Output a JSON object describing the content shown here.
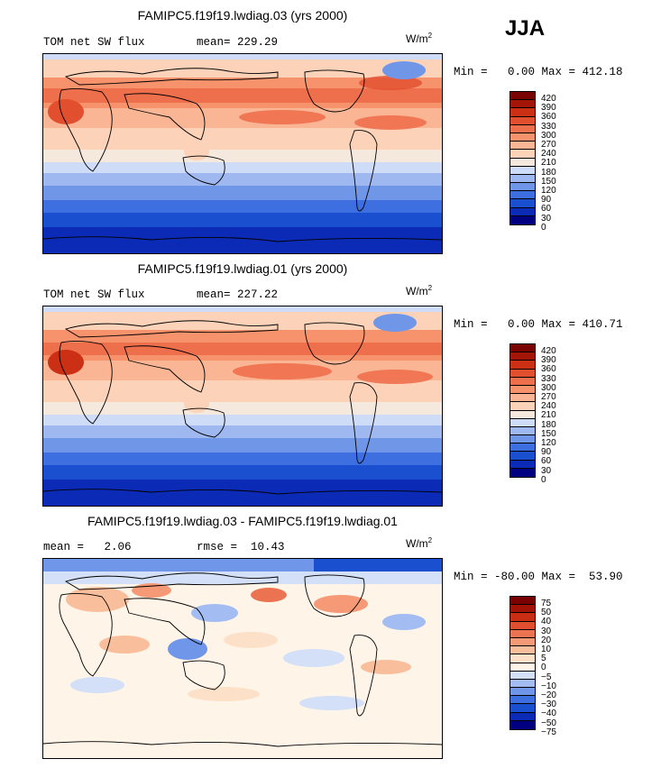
{
  "season": "JJA",
  "colors": {
    "abs": [
      "#000080",
      "#0b2ab5",
      "#1a4fd0",
      "#3d6fe0",
      "#7096e8",
      "#a0b8f0",
      "#cfdcf7",
      "#f5e9de",
      "#fcd2b9",
      "#f9b594",
      "#f6936d",
      "#ee6f4c",
      "#e24f2e",
      "#cc3014",
      "#a31607",
      "#7a0404"
    ],
    "diff": [
      "#000080",
      "#0b2ab5",
      "#1a4fd0",
      "#3d6fe0",
      "#6f96e9",
      "#a3bdf2",
      "#d3e0f8",
      "#fff4e8",
      "#fce1c8",
      "#f9bf9c",
      "#f59976",
      "#ec7352",
      "#df4f2f",
      "#c92e14",
      "#a21305",
      "#7a0000"
    ]
  },
  "panels": [
    {
      "title": "FAMIPC5.f19f19.lwdiag.03 (yrs 2000)",
      "left_label": "TOM net SW flux",
      "stat_label": "mean= 229.29",
      "units": "W/m",
      "units_exp": "2",
      "minmax": "Min =   0.00 Max = 412.18",
      "ticks": [
        "420",
        "390",
        "360",
        "330",
        "300",
        "270",
        "240",
        "210",
        "180",
        "150",
        "120",
        "90",
        "60",
        "30",
        "0"
      ]
    },
    {
      "title": "FAMIPC5.f19f19.lwdiag.01 (yrs 2000)",
      "left_label": "TOM net SW flux",
      "stat_label": "mean= 227.22",
      "units": "W/m",
      "units_exp": "2",
      "minmax": "Min =   0.00 Max = 410.71",
      "ticks": [
        "420",
        "390",
        "360",
        "330",
        "300",
        "270",
        "240",
        "210",
        "180",
        "150",
        "120",
        "90",
        "60",
        "30",
        "0"
      ]
    },
    {
      "title": "FAMIPC5.f19f19.lwdiag.03 - FAMIPC5.f19f19.lwdiag.01",
      "left_label": "mean =   2.06",
      "stat_label": "rmse =  10.43",
      "units": "W/m",
      "units_exp": "2",
      "minmax": "Min = -80.00 Max =  53.90",
      "ticks": [
        "75",
        "50",
        "40",
        "30",
        "20",
        "10",
        "5",
        "0",
        "−5",
        "−10",
        "−20",
        "−30",
        "−40",
        "−50",
        "−75"
      ]
    }
  ]
}
